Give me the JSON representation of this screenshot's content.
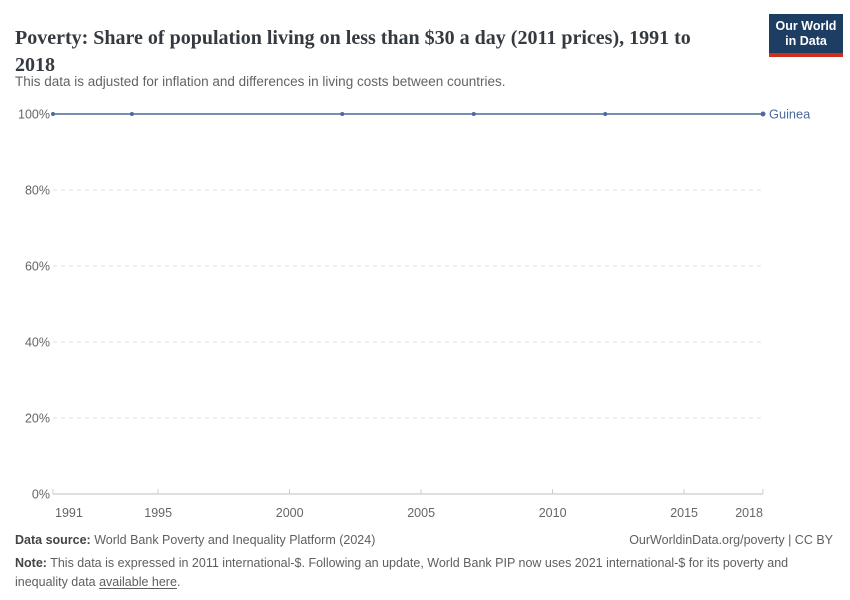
{
  "header": {
    "title": "Poverty: Share of population living on less than $30 a day (2011 prices), 1991 to 2018",
    "subtitle": "This data is adjusted for inflation and differences in living costs between countries.",
    "logo_line1": "Our World",
    "logo_line2": "in Data"
  },
  "chart_data": {
    "type": "line",
    "title": "Poverty: Share of population living on less than $30 a day (2011 prices), 1991 to 2018",
    "series": [
      {
        "name": "Guinea",
        "x": [
          1991,
          1994,
          2002,
          2007,
          2012,
          2018
        ],
        "values": [
          100,
          100,
          100,
          100,
          100,
          100
        ]
      }
    ],
    "xlabel": "",
    "ylabel": "",
    "xlim": [
      1991,
      2018
    ],
    "ylim": [
      0,
      100
    ],
    "xticks": [
      1991,
      1995,
      2000,
      2005,
      2010,
      2015,
      2018
    ],
    "yticks": [
      0,
      20,
      40,
      60,
      80,
      100
    ],
    "ytick_labels": [
      "0%",
      "20%",
      "40%",
      "60%",
      "80%",
      "100%"
    ],
    "grid": "horizontal-dashed",
    "legend_position": "line-end-label",
    "line_color": "#4c6a9c"
  },
  "colors": {
    "line": "#4c6a9c",
    "entity_label": "#4c6a9c",
    "gridline": "#e0e0e0",
    "axis": "#bfbfbf",
    "tick": "#cccccc",
    "tick_label": "#666666",
    "logo_bg": "#1d3d63",
    "logo_red": "#cf2d20"
  },
  "footer": {
    "datasource_label": "Data source:",
    "datasource_text": " World Bank Poverty and Inequality Platform (2024)",
    "rights": "OurWorldinData.org/poverty | CC BY",
    "note_label": "Note:",
    "note_before_link": " This data is expressed in 2011 international-$. Following an update, World Bank PIP now uses 2021 international-$ for its poverty and inequality data ",
    "note_link": "available here",
    "note_after_link": "."
  }
}
